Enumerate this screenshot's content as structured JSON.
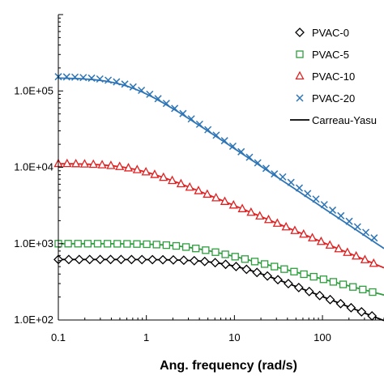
{
  "chart_data": {
    "type": "scatter",
    "xlabel": "Ang. frequency (rad/s)",
    "ylabel": "",
    "x_scale": "log",
    "y_scale": "log",
    "xlim": [
      0.1,
      500
    ],
    "ylim": [
      100,
      1000000
    ],
    "x_ticks": [
      {
        "value": 0.1,
        "label": "0.1"
      },
      {
        "value": 1,
        "label": "1"
      },
      {
        "value": 10,
        "label": "10"
      },
      {
        "value": 100,
        "label": "100"
      }
    ],
    "y_ticks": [
      {
        "value": 100,
        "label": "1.0E+02"
      },
      {
        "value": 1000,
        "label": "1.0E+03"
      },
      {
        "value": 10000,
        "label": "1.0E+04"
      },
      {
        "value": 100000,
        "label": "1.0E+05"
      }
    ],
    "grid": false,
    "legend_position": "top-right",
    "series": [
      {
        "name": "PVAC-0",
        "marker": "diamond",
        "color": "#000000",
        "eta0": 620,
        "lambda": 0.12,
        "n": 0.55,
        "x_range": [
          0.1,
          480
        ],
        "points": 32
      },
      {
        "name": "PVAC-5",
        "marker": "square",
        "color": "#2e9e3e",
        "eta0": 1000,
        "lambda": 0.35,
        "n": 0.7,
        "x_range": [
          0.1,
          480
        ],
        "points": 34
      },
      {
        "name": "PVAC-10",
        "marker": "triangle",
        "color": "#e02020",
        "eta0": 11200,
        "lambda": 1.4,
        "n": 0.52,
        "x_range": [
          0.1,
          480
        ],
        "points": 38
      },
      {
        "name": "PVAC-20",
        "marker": "x",
        "color": "#2e75b6",
        "eta0": 155000,
        "lambda": 1.6,
        "n": 0.23,
        "x_range": [
          0.1,
          480
        ],
        "points": 40
      }
    ],
    "fit": {
      "name": "Carreau-Yasu",
      "style": "line",
      "colors": [
        "#000000",
        "#2e9e3e",
        "#e02020",
        "#2e75b6"
      ]
    }
  }
}
